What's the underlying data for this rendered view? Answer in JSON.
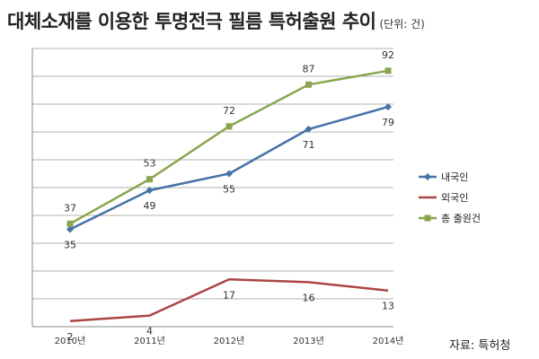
{
  "header": {
    "title": "대체소재를 이용한 투명전극 필름 특허출원 추이",
    "unit_note": "(단위: 건)"
  },
  "source": "자료: 특허청",
  "colors": {
    "domestic": "#4572A7",
    "foreign": "#AA4643",
    "total": "#89A54E",
    "grid": "#b0b0b0",
    "axis": "#888888"
  },
  "chart_data": {
    "type": "line",
    "title": "대체소재를 이용한 투명전극 필름 특허출원 추이",
    "subtitle": "(단위: 건)",
    "xlabel": "",
    "ylabel": "",
    "categories": [
      "2010년",
      "2011년",
      "2012년",
      "2013년",
      "2014년"
    ],
    "ylim": [
      0,
      100
    ],
    "grid": true,
    "legend_position": "right",
    "series": [
      {
        "name": "내국인",
        "values": [
          35,
          49,
          55,
          71,
          79
        ],
        "color": "#4572A7",
        "marker": "diamond",
        "label_side": "below"
      },
      {
        "name": "외국인",
        "values": [
          2,
          4,
          17,
          16,
          13
        ],
        "color": "#AA4643",
        "marker": "none",
        "label_side": "below"
      },
      {
        "name": "총 출원건",
        "values": [
          37,
          53,
          72,
          87,
          92
        ],
        "color": "#89A54E",
        "marker": "square",
        "label_side": "above"
      }
    ]
  }
}
